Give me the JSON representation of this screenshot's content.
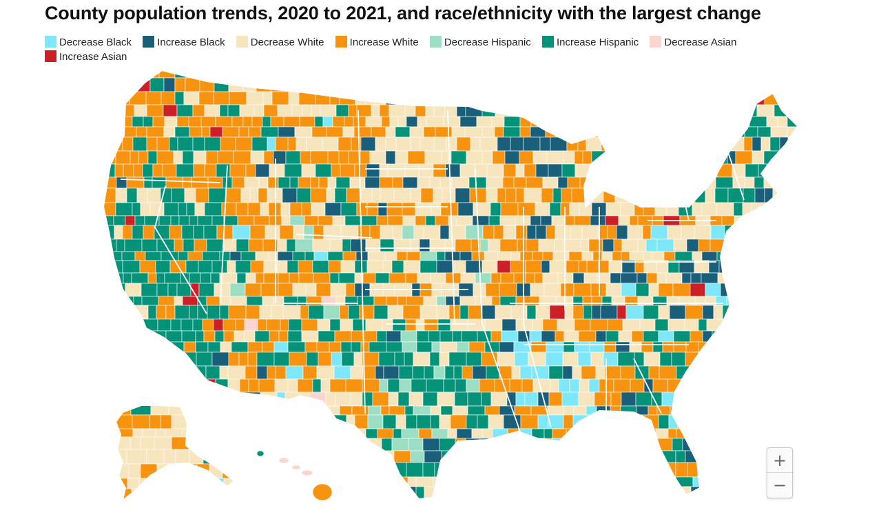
{
  "title": "County population trends, 2020 to 2021, and race/ethnicity with the largest change",
  "legend": [
    {
      "label": "Decrease Black",
      "color": "#7ee8fa"
    },
    {
      "label": "Increase Black",
      "color": "#1a5f7a"
    },
    {
      "label": "Decrease White",
      "color": "#f7e5bd"
    },
    {
      "label": "Increase White",
      "color": "#f7930f"
    },
    {
      "label": "Decrease Hispanic",
      "color": "#9bdec4"
    },
    {
      "label": "Increase Hispanic",
      "color": "#049379"
    },
    {
      "label": "Decrease Asian",
      "color": "#fbd5cf"
    },
    {
      "label": "Increase Asian",
      "color": "#cd2026"
    }
  ],
  "colors": {
    "background": "#ffffff",
    "borders": "#ffffff",
    "no_data": "#dddddd"
  },
  "zoom": {
    "in_label": "+",
    "out_label": "−"
  }
}
